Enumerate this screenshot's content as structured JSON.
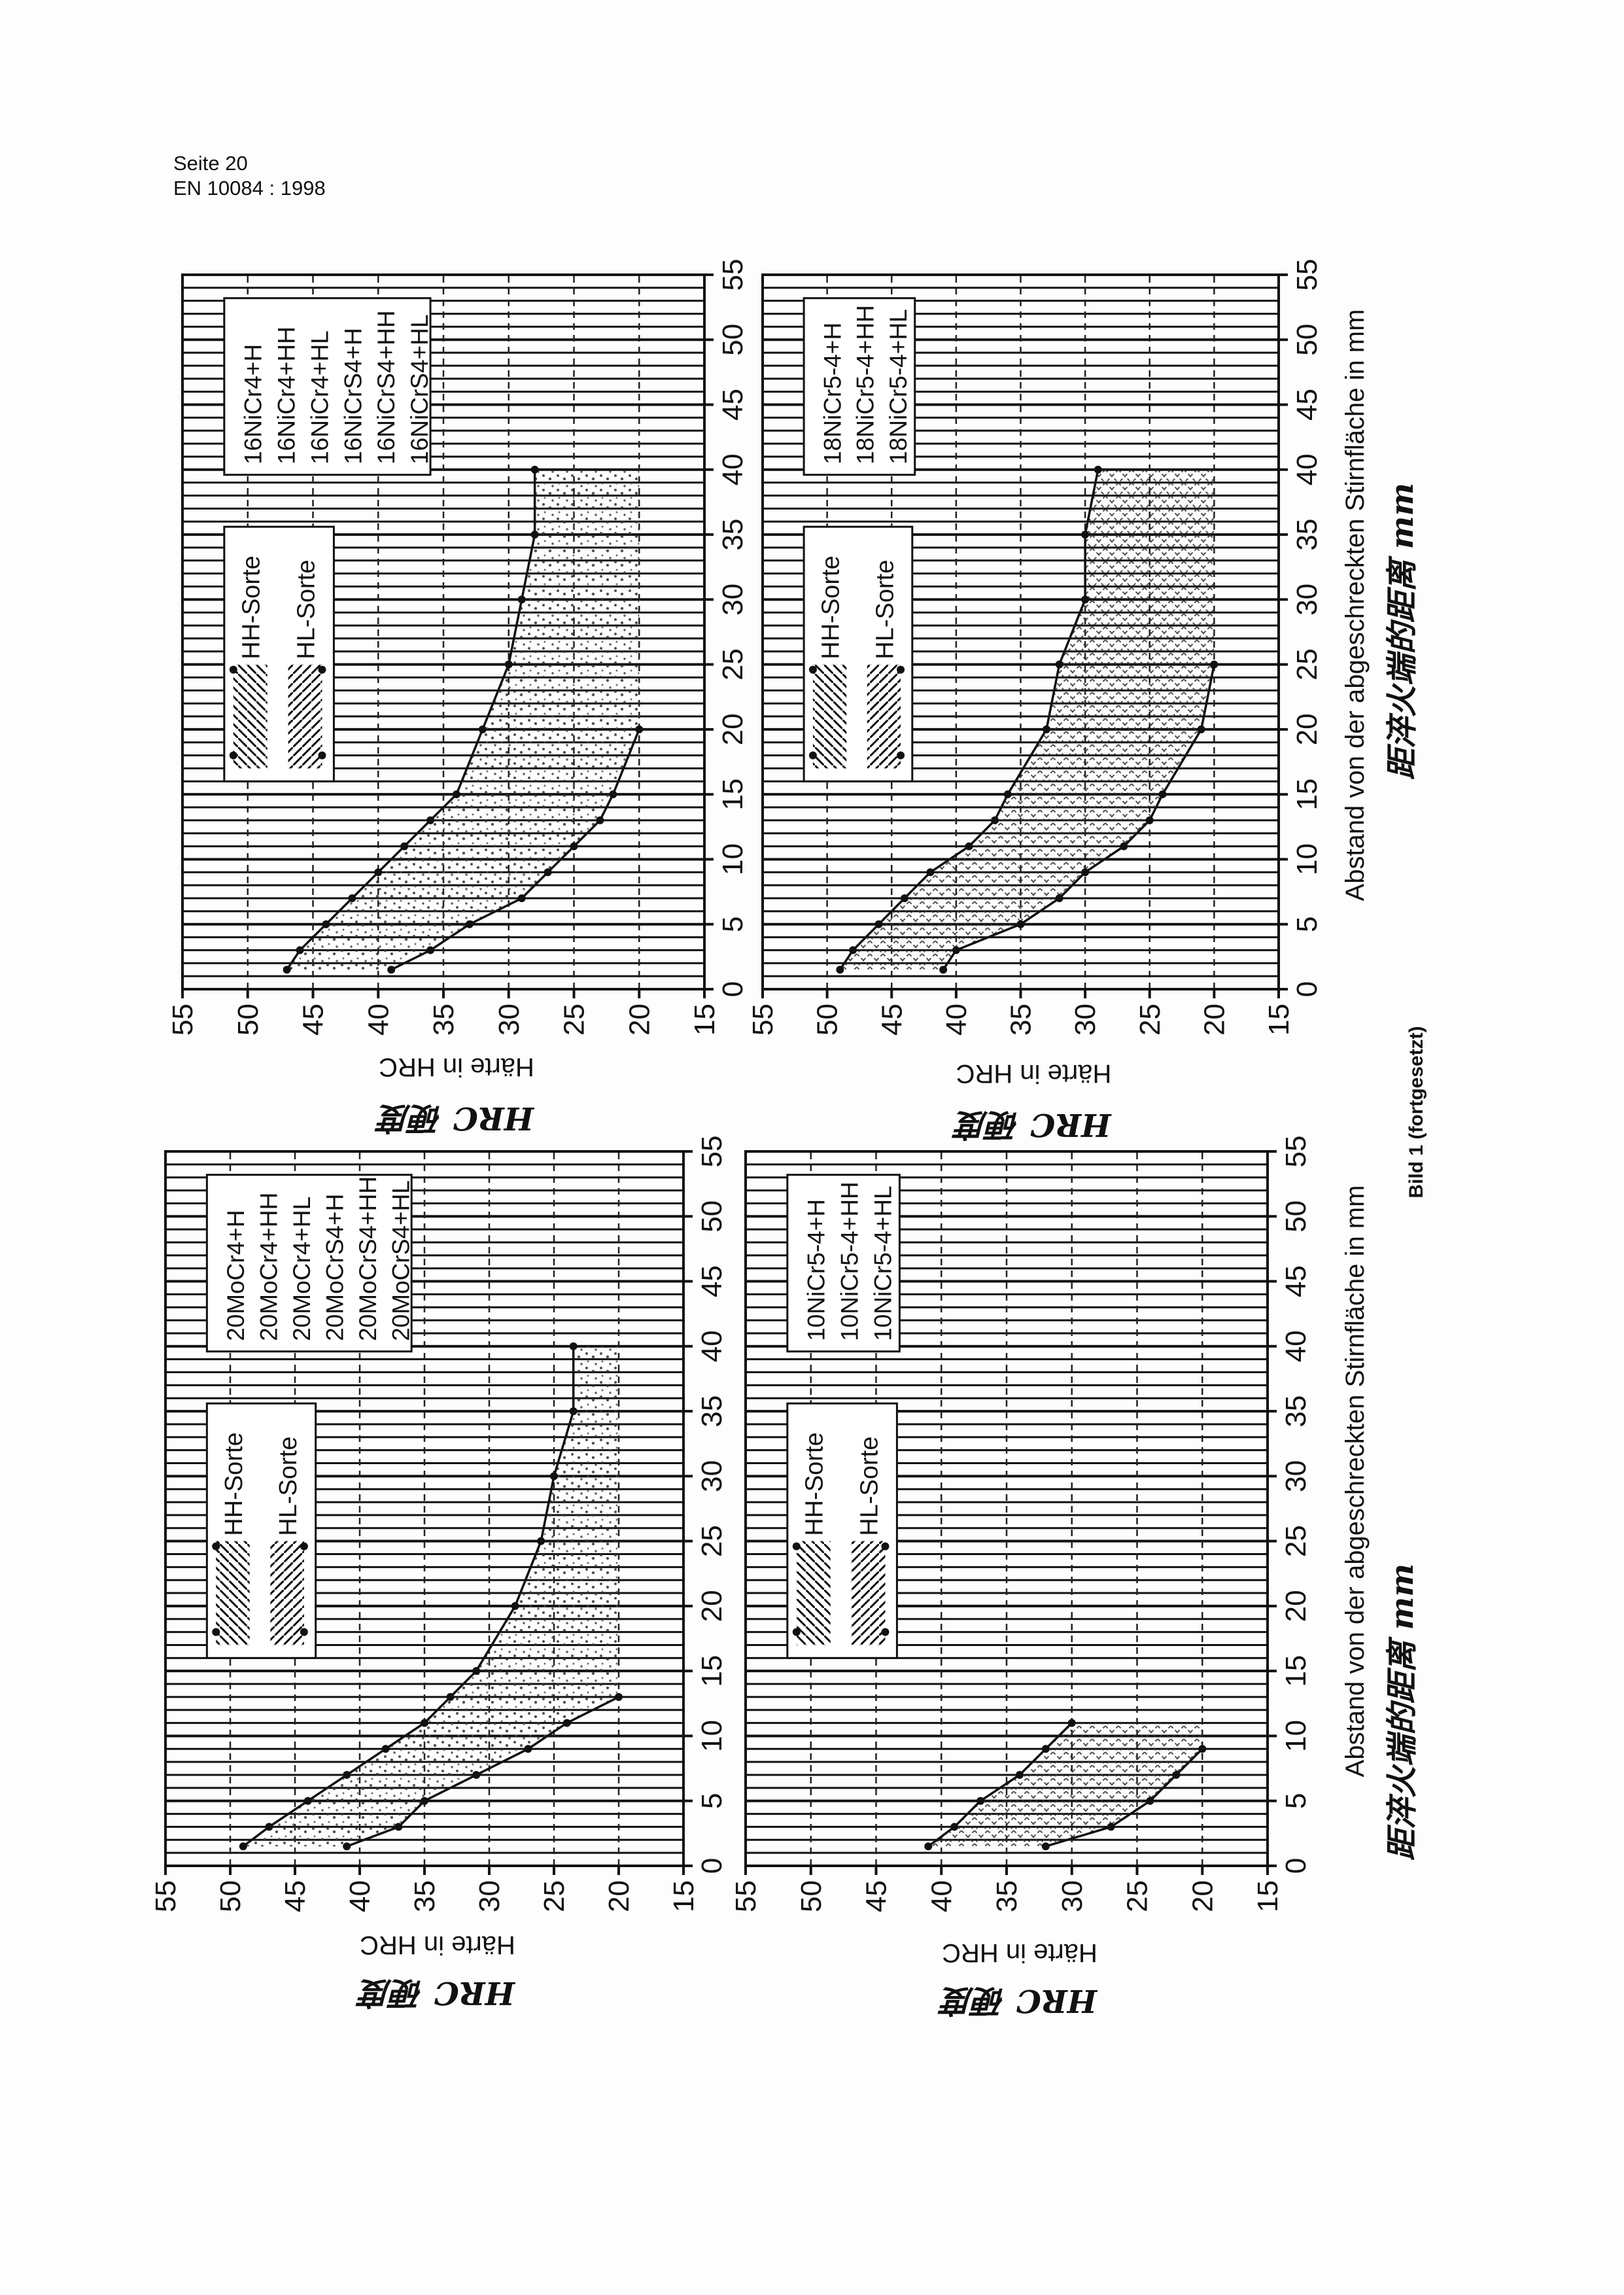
{
  "header": {
    "page": "Seite 20",
    "standard": "EN 10084 : 1998"
  },
  "caption": "Bild 1 (fortgesetzt)",
  "handwritten": {
    "hrc": "HRC 硬度",
    "distance": "距淬火端的距离 mm"
  },
  "chart_data": [
    {
      "type": "area",
      "grades": [
        "16NiCr4+H",
        "16NiCr4+HH",
        "16NiCr4+HL",
        "16NiCrS4+H",
        "16NiCrS4+HH",
        "16NiCrS4+HL"
      ],
      "legend": [
        "HH-Sorte",
        "HL-Sorte"
      ],
      "xlabel": "",
      "ylabel": "Härte in HRC",
      "xlim": [
        0,
        55
      ],
      "ylim": [
        15,
        55
      ],
      "xticks": [
        0,
        5,
        10,
        15,
        20,
        25,
        30,
        35,
        40,
        45,
        50,
        55
      ],
      "yticks": [
        55,
        50,
        45,
        40,
        35,
        30,
        25,
        20,
        15
      ],
      "grid": true,
      "fill": "stipple",
      "upper": {
        "x": [
          1.5,
          3,
          5,
          7,
          9,
          11,
          13,
          15,
          20,
          25,
          30,
          35,
          40
        ],
        "y": [
          47,
          46,
          44,
          42,
          40,
          38,
          36,
          34,
          32,
          30,
          29,
          28,
          28
        ]
      },
      "lower": {
        "x": [
          1.5,
          3,
          5,
          7,
          9,
          11,
          13,
          15,
          20
        ],
        "y": [
          39,
          36,
          33,
          29,
          27,
          25,
          23,
          22,
          20
        ]
      }
    },
    {
      "type": "area",
      "grades": [
        "18NiCr5-4+H",
        "18NiCr5-4+HH",
        "18NiCr5-4+HL"
      ],
      "legend": [
        "HH-Sorte",
        "HL-Sorte"
      ],
      "xlabel": "Abstand von der abgeschreckten Stirnfläche in mm",
      "ylabel": "Härte in HRC",
      "xlim": [
        0,
        55
      ],
      "ylim": [
        15,
        55
      ],
      "xticks": [
        0,
        5,
        10,
        15,
        20,
        25,
        30,
        35,
        40,
        45,
        50,
        55
      ],
      "yticks": [
        55,
        50,
        45,
        40,
        35,
        30,
        25,
        20,
        15
      ],
      "grid": true,
      "fill": "crosshatch",
      "upper": {
        "x": [
          1.5,
          3,
          5,
          7,
          9,
          11,
          13,
          15,
          20,
          25,
          30,
          35,
          40
        ],
        "y": [
          49,
          48,
          46,
          44,
          42,
          39,
          37,
          36,
          33,
          32,
          30,
          30,
          29
        ]
      },
      "lower": {
        "x": [
          1.5,
          3,
          5,
          7,
          9,
          11,
          13,
          15,
          20,
          25
        ],
        "y": [
          41,
          40,
          35,
          32,
          30,
          27,
          25,
          24,
          21,
          20
        ]
      }
    },
    {
      "type": "area",
      "grades": [
        "20MoCr4+H",
        "20MoCr4+HH",
        "20MoCr4+HL",
        "20MoCrS4+H",
        "20MoCrS4+HH",
        "20MoCrS4+HL"
      ],
      "legend": [
        "HH-Sorte",
        "HL-Sorte"
      ],
      "xlabel": "",
      "ylabel": "Härte in HRC",
      "xlim": [
        0,
        55
      ],
      "ylim": [
        15,
        55
      ],
      "xticks": [
        0,
        5,
        10,
        15,
        20,
        25,
        30,
        35,
        40,
        45,
        50,
        55
      ],
      "yticks": [
        55,
        50,
        45,
        40,
        35,
        30,
        25,
        20,
        15
      ],
      "grid": true,
      "fill": "stipple",
      "upper": {
        "x": [
          1.5,
          3,
          5,
          7,
          9,
          11,
          13,
          15,
          20,
          25,
          30,
          35,
          40
        ],
        "y": [
          49,
          47,
          44,
          41,
          38,
          35,
          33,
          31,
          28,
          26,
          25,
          23.5,
          23.5
        ]
      },
      "lower": {
        "x": [
          1.5,
          3,
          5,
          7,
          9,
          11,
          13
        ],
        "y": [
          41,
          37,
          35,
          31,
          27,
          24,
          20
        ]
      }
    },
    {
      "type": "area",
      "grades": [
        "10NiCr5-4+H",
        "10NiCr5-4+HH",
        "10NiCr5-4+HL"
      ],
      "legend": [
        "HH-Sorte",
        "HL-Sorte"
      ],
      "xlabel": "Abstand von der abgeschreckten Stirnfläche in mm",
      "ylabel": "Härte in HRC",
      "xlim": [
        0,
        55
      ],
      "ylim": [
        15,
        55
      ],
      "xticks": [
        0,
        5,
        10,
        15,
        20,
        25,
        30,
        35,
        40,
        45,
        50,
        55
      ],
      "yticks": [
        55,
        50,
        45,
        40,
        35,
        30,
        25,
        20,
        15
      ],
      "grid": true,
      "fill": "crosshatch",
      "upper": {
        "x": [
          1.5,
          3,
          5,
          7,
          9,
          11
        ],
        "y": [
          41,
          39,
          37,
          34,
          32,
          30
        ]
      },
      "lower": {
        "x": [
          1.5,
          3,
          5,
          7,
          9
        ],
        "y": [
          32,
          27,
          24,
          22,
          20
        ]
      }
    }
  ]
}
